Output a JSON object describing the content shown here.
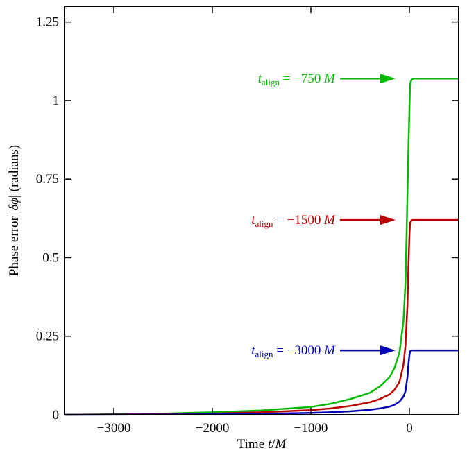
{
  "chart_data": {
    "type": "line",
    "title": "",
    "xlabel": "Time t/M",
    "ylabel": "Phase error |δϕ| (radians)",
    "xlim": [
      -3500,
      500
    ],
    "ylim": [
      0,
      1.3
    ],
    "xticks": [
      -3000,
      -2000,
      -1000,
      0
    ],
    "xtick_labels": [
      "−3000",
      "−2000",
      "−1000",
      "0"
    ],
    "yticks": [
      0,
      0.25,
      0.5,
      0.75,
      1,
      1.25
    ],
    "ytick_labels": [
      "0",
      "0.25",
      "0.5",
      "0.75",
      "1",
      "1.25"
    ],
    "grid": false,
    "series": [
      {
        "color": "#00bb00",
        "final_value": 1.07,
        "annotation": {
          "sym": "t",
          "sub": "align",
          "rest": " = −750 ",
          "unit": "M"
        },
        "x": [
          -3500,
          -3000,
          -2500,
          -2000,
          -1500,
          -1000,
          -800,
          -600,
          -400,
          -300,
          -200,
          -150,
          -100,
          -60,
          -40,
          -20,
          -10,
          0,
          5,
          10,
          20,
          30,
          50,
          100,
          200,
          300,
          500
        ],
        "y": [
          0.0,
          0.0015,
          0.004,
          0.008,
          0.014,
          0.025,
          0.035,
          0.05,
          0.07,
          0.09,
          0.12,
          0.15,
          0.2,
          0.3,
          0.42,
          0.7,
          0.85,
          0.97,
          1.03,
          1.055,
          1.065,
          1.068,
          1.07,
          1.07,
          1.07,
          1.07,
          1.07
        ]
      },
      {
        "color": "#bb0000",
        "final_value": 0.62,
        "annotation": {
          "sym": "t",
          "sub": "align",
          "rest": " = −1500 ",
          "unit": "M"
        },
        "x": [
          -3500,
          -3000,
          -2500,
          -2000,
          -1500,
          -1000,
          -800,
          -600,
          -400,
          -300,
          -200,
          -150,
          -100,
          -60,
          -40,
          -20,
          -10,
          0,
          5,
          10,
          20,
          30,
          50,
          100,
          200,
          300,
          500
        ],
        "y": [
          0.0,
          0.001,
          0.002,
          0.004,
          0.008,
          0.015,
          0.02,
          0.028,
          0.04,
          0.05,
          0.065,
          0.08,
          0.105,
          0.16,
          0.22,
          0.35,
          0.47,
          0.57,
          0.6,
          0.612,
          0.618,
          0.62,
          0.62,
          0.62,
          0.62,
          0.62,
          0.62
        ]
      },
      {
        "color": "#0000bb",
        "final_value": 0.205,
        "annotation": {
          "sym": "t",
          "sub": "align",
          "rest": " = −3000 ",
          "unit": "M"
        },
        "x": [
          -3500,
          -3000,
          -2500,
          -2000,
          -1500,
          -1000,
          -800,
          -600,
          -400,
          -300,
          -200,
          -150,
          -100,
          -60,
          -40,
          -20,
          -10,
          0,
          5,
          10,
          20,
          30,
          50,
          100,
          200,
          300,
          500
        ],
        "y": [
          0.0,
          0.0003,
          0.0008,
          0.0015,
          0.003,
          0.006,
          0.008,
          0.011,
          0.016,
          0.02,
          0.026,
          0.032,
          0.042,
          0.058,
          0.075,
          0.12,
          0.16,
          0.19,
          0.199,
          0.203,
          0.205,
          0.205,
          0.205,
          0.205,
          0.205,
          0.205,
          0.205
        ]
      }
    ]
  }
}
